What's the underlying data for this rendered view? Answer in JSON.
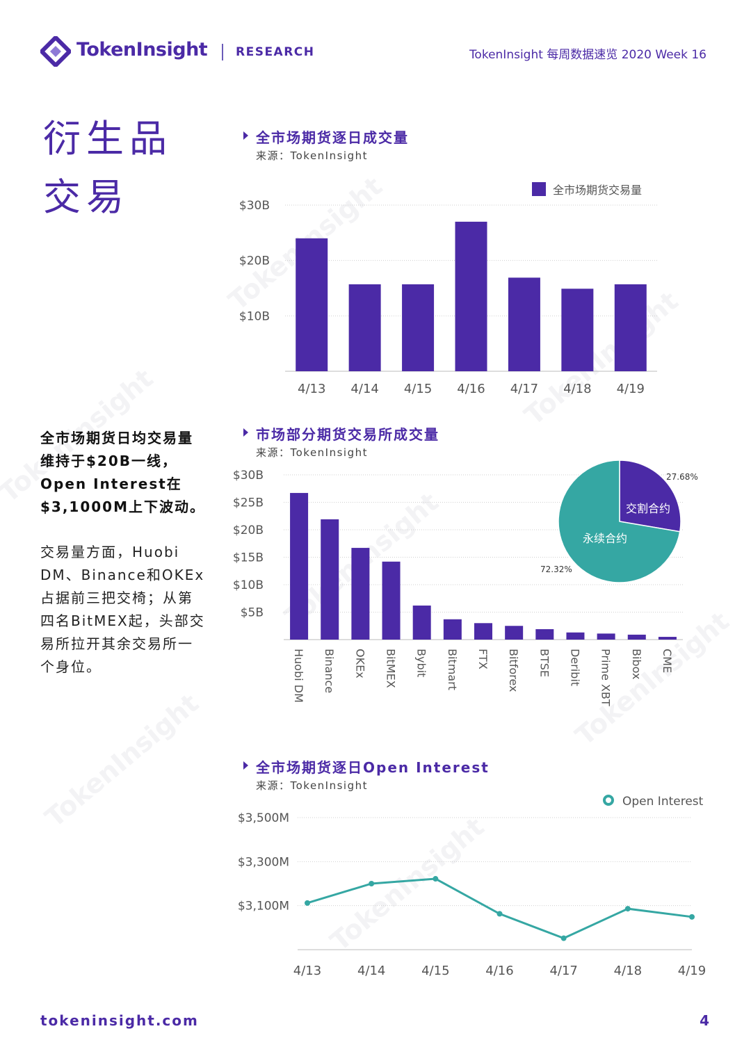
{
  "colors": {
    "brand": "#4b2aa6",
    "teal": "#35a7a3",
    "grid": "#cfcfcf"
  },
  "header": {
    "logo_text": "TokenInsight",
    "research_label": "RESEARCH",
    "right_title": "TokenInsight 每周数据速览 2020 Week 16"
  },
  "page": {
    "title_line1": "衍生品",
    "title_line2": "交易"
  },
  "summary": {
    "bold_text": "全市场期货日均交易量维持于$20B一线，Open Interest在$3,1000M上下波动。",
    "body_text": "交易量方面，Huobi DM、Binance和OKEx占据前三把交椅；从第四名BitMEX起，头部交易所拉开其余交易所一个身位。"
  },
  "charts": {
    "daily_volume": {
      "title": "全市场期货逐日成交量",
      "source": "来源：TokenInsight"
    },
    "exchange_volume": {
      "title": "市场部分期货交易所成交量",
      "source": "来源：TokenInsight"
    },
    "open_interest": {
      "title": "全市场期货逐日Open Interest",
      "source": "来源：TokenInsight"
    }
  },
  "chart_data": [
    {
      "type": "bar",
      "categories": [
        "4/13",
        "4/14",
        "4/15",
        "4/16",
        "4/17",
        "4/18",
        "4/19"
      ],
      "series": [
        {
          "name": "全市场期货交易量",
          "values": [
            24.0,
            15.7,
            15.7,
            27.0,
            16.9,
            14.9,
            15.7
          ]
        }
      ],
      "ylim": [
        0,
        30
      ],
      "yticks": [
        "$10B",
        "$20B",
        "$30B"
      ],
      "ytick_values": [
        10,
        20,
        30
      ],
      "legend": "top-right",
      "grid": true
    },
    {
      "type": "bar",
      "categories": [
        "Huobi DM",
        "Binance",
        "OKEx",
        "BitMEX",
        "Bybit",
        "Bitmart",
        "FTX",
        "Bitforex",
        "BTSE",
        "Deribit",
        "Prime XBT",
        "Bibox",
        "CME"
      ],
      "values": [
        26.7,
        21.9,
        16.7,
        14.2,
        6.2,
        3.7,
        3.0,
        2.5,
        1.9,
        1.3,
        1.1,
        0.9,
        0.5
      ],
      "ylim": [
        0,
        30
      ],
      "yticks": [
        "$5B",
        "$10B",
        "$15B",
        "$20B",
        "$25B",
        "$30B"
      ],
      "ytick_values": [
        5,
        10,
        15,
        20,
        25,
        30
      ],
      "grid": true
    },
    {
      "type": "pie",
      "labels": [
        "交割合约",
        "永续合约"
      ],
      "values": [
        27.68,
        72.32
      ],
      "value_labels": [
        "27.68%",
        "72.32%"
      ]
    },
    {
      "type": "line",
      "x": [
        "4/13",
        "4/14",
        "4/15",
        "4/16",
        "4/17",
        "4/18",
        "4/19"
      ],
      "series": [
        {
          "name": "Open Interest",
          "values": [
            3112,
            3200,
            3222,
            3063,
            2952,
            3086,
            3049
          ]
        }
      ],
      "ylim": [
        2900,
        3500
      ],
      "yticks": [
        "$3,100M",
        "$3,300M",
        "$3,500M"
      ],
      "ytick_values": [
        3100,
        3300,
        3500
      ],
      "legend": "top-right",
      "grid": true
    }
  ],
  "footer": {
    "url": "tokeninsight.com",
    "page_number": "4"
  }
}
